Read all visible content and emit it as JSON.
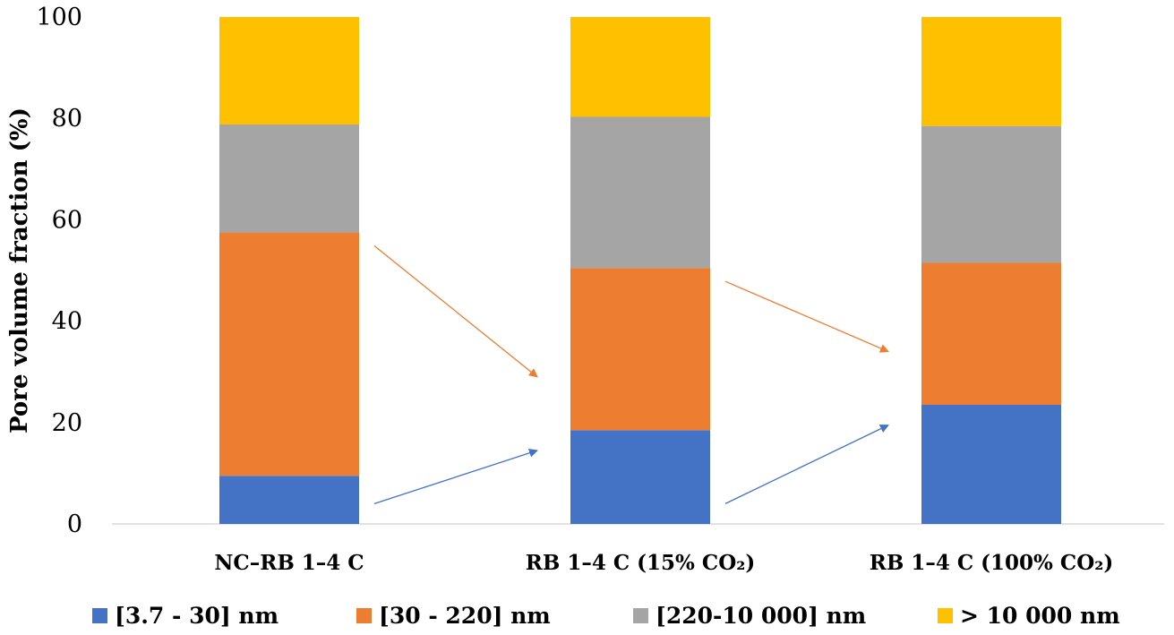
{
  "chart_data": {
    "type": "bar",
    "stacked": true,
    "title": "",
    "xlabel": "",
    "ylabel": "Pore volume fraction (%)",
    "ylim": [
      0,
      100
    ],
    "yticks": [
      "0",
      "20",
      "40",
      "60",
      "80",
      "100"
    ],
    "categories": [
      "NC–RB 1–4 C",
      "RB 1–4 C (15% CO₂)",
      "RB 1–4 C (100% CO₂)"
    ],
    "series": [
      {
        "name": "[3.7 - 30] nm",
        "color": "#4472C4",
        "values": [
          9.5,
          18.5,
          23.5
        ]
      },
      {
        "name": "[30 - 220] nm",
        "color": "#ED7D31",
        "values": [
          48.0,
          32.0,
          28.0
        ]
      },
      {
        "name": "[220-10 000] nm",
        "color": "#A5A5A5",
        "values": [
          21.3,
          29.8,
          27.0
        ]
      },
      {
        "name": "> 10 000 nm",
        "color": "#FFC000",
        "values": [
          21.2,
          19.7,
          21.5
        ]
      }
    ],
    "legend_position": "bottom",
    "annotations": [
      {
        "type": "arrow",
        "series": "[30 - 220] nm",
        "direction": "down",
        "from_category": 0,
        "to_category": 1
      },
      {
        "type": "arrow",
        "series": "[30 - 220] nm",
        "direction": "down",
        "from_category": 1,
        "to_category": 2
      },
      {
        "type": "arrow",
        "series": "[3.7 - 30] nm",
        "direction": "up",
        "from_category": 0,
        "to_category": 1
      },
      {
        "type": "arrow",
        "series": "[3.7 - 30] nm",
        "direction": "up",
        "from_category": 1,
        "to_category": 2
      }
    ]
  }
}
